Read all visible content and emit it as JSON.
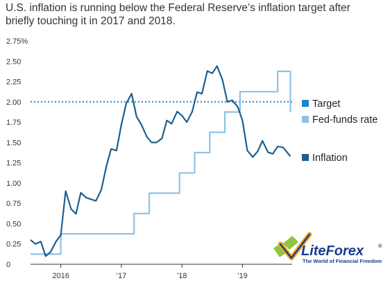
{
  "caption": "U.S. inflation is running below the Federal Reserve’s inflation target after briefly touching it in 2017 and 2018.",
  "colors": {
    "target": "#1e86c8",
    "fed_funds": "#8ec1e6",
    "inflation": "#1d5f8e",
    "axis": "#333333",
    "gridline": "#cccccc",
    "logo_blue": "#1a3a8c",
    "logo_green": "#8dc63f",
    "logo_orange": "#f7a823"
  },
  "watermark": {
    "brand": "LiteForex",
    "tagline": "The World of Financial Freedom",
    "registered": "®"
  },
  "chart_data": {
    "type": "line",
    "title": "",
    "xlabel": "",
    "ylabel": "",
    "ylim": [
      0,
      2.75
    ],
    "xlim": [
      2015.5,
      2019.82
    ],
    "y_ticks": [
      0,
      0.25,
      0.5,
      0.75,
      1.0,
      1.25,
      1.5,
      1.75,
      2.0,
      2.25,
      2.5,
      2.75
    ],
    "y_tick_labels": [
      "0",
      "0.25",
      "0.50",
      "0.75",
      "1.00",
      "1.25",
      "1.50",
      "1.75",
      "2.00",
      "2.25",
      "2.50",
      "2.75%"
    ],
    "x_ticks": [
      2016,
      2017,
      2018,
      2019
    ],
    "x_tick_labels": [
      "2016",
      "’17",
      "’18",
      "’19"
    ],
    "grid": false,
    "legend_position": "right",
    "series": [
      {
        "name": "Target",
        "style": "dotted",
        "x": [
          2015.5,
          2019.82
        ],
        "y": [
          2.0,
          2.0
        ]
      },
      {
        "name": "Fed-funds rate",
        "style": "step",
        "x": [
          2015.5,
          2015.96,
          2016.0,
          2016.96,
          2017.21,
          2017.46,
          2017.96,
          2018.21,
          2018.46,
          2018.71,
          2018.96,
          2019.58,
          2019.67,
          2019.79
        ],
        "y": [
          0.125,
          0.125,
          0.375,
          0.375,
          0.625,
          0.875,
          1.125,
          1.375,
          1.625,
          1.875,
          2.125,
          2.375,
          2.375,
          1.875
        ]
      },
      {
        "name": "Inflation",
        "style": "solid",
        "x": [
          2015.5,
          2015.58,
          2015.67,
          2015.75,
          2015.83,
          2015.92,
          2016.0,
          2016.08,
          2016.17,
          2016.25,
          2016.33,
          2016.42,
          2016.5,
          2016.58,
          2016.67,
          2016.75,
          2016.83,
          2016.92,
          2017.0,
          2017.08,
          2017.17,
          2017.25,
          2017.33,
          2017.42,
          2017.5,
          2017.58,
          2017.67,
          2017.75,
          2017.83,
          2017.92,
          2018.0,
          2018.08,
          2018.17,
          2018.25,
          2018.33,
          2018.42,
          2018.5,
          2018.58,
          2018.67,
          2018.75,
          2018.83,
          2018.92,
          2019.0,
          2019.08,
          2019.17,
          2019.25,
          2019.33,
          2019.42,
          2019.5,
          2019.58,
          2019.67,
          2019.79
        ],
        "y": [
          0.3,
          0.25,
          0.28,
          0.1,
          0.15,
          0.28,
          0.36,
          0.9,
          0.68,
          0.62,
          0.88,
          0.82,
          0.8,
          0.78,
          0.92,
          1.2,
          1.42,
          1.4,
          1.72,
          1.98,
          2.1,
          1.82,
          1.72,
          1.57,
          1.5,
          1.5,
          1.55,
          1.77,
          1.73,
          1.88,
          1.83,
          1.75,
          1.88,
          2.12,
          2.1,
          2.38,
          2.35,
          2.44,
          2.27,
          2.0,
          2.02,
          1.94,
          1.77,
          1.4,
          1.32,
          1.39,
          1.52,
          1.38,
          1.36,
          1.45,
          1.44,
          1.33
        ]
      }
    ]
  }
}
